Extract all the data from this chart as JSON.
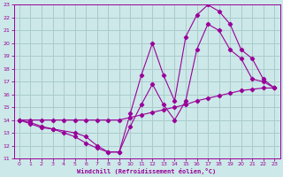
{
  "xlabel": "Windchill (Refroidissement éolien,°C)",
  "bg_color": "#cce8e8",
  "line_color": "#990099",
  "grid_color": "#aacccc",
  "xlim": [
    -0.5,
    23.5
  ],
  "ylim": [
    11,
    23
  ],
  "xticks": [
    0,
    1,
    2,
    3,
    4,
    5,
    6,
    7,
    8,
    9,
    10,
    11,
    12,
    13,
    14,
    15,
    16,
    17,
    18,
    19,
    20,
    21,
    22,
    23
  ],
  "yticks": [
    11,
    12,
    13,
    14,
    15,
    16,
    17,
    18,
    19,
    20,
    21,
    22,
    23
  ],
  "line1_x": [
    0,
    1,
    2,
    3,
    4,
    5,
    6,
    7,
    8,
    9,
    10,
    11,
    12,
    13,
    14,
    15,
    16,
    17,
    18,
    19,
    20,
    21,
    22,
    23
  ],
  "line1_y": [
    14,
    14,
    14,
    14,
    14,
    14,
    14,
    14,
    14,
    14,
    14.2,
    14.4,
    14.6,
    14.8,
    15.0,
    15.2,
    15.5,
    15.7,
    15.9,
    16.1,
    16.3,
    16.4,
    16.5,
    16.5
  ],
  "line2_x": [
    0,
    1,
    2,
    3,
    4,
    5,
    6,
    7,
    8,
    9,
    10,
    11,
    12,
    13,
    14,
    15,
    16,
    17,
    18,
    19,
    20,
    21,
    22,
    23
  ],
  "line2_y": [
    14,
    13.7,
    13.4,
    13.3,
    13.0,
    12.7,
    12.2,
    11.8,
    11.5,
    11.5,
    13.5,
    15.2,
    16.8,
    15.2,
    14.0,
    15.5,
    19.5,
    21.5,
    21.0,
    19.5,
    18.8,
    17.2,
    17.0,
    16.5
  ],
  "line3_x": [
    0,
    1,
    2,
    3,
    5,
    6,
    7,
    8,
    9,
    10,
    11,
    12,
    13,
    14,
    15,
    16,
    17,
    18,
    19,
    20,
    21,
    22,
    23
  ],
  "line3_y": [
    14,
    13.8,
    13.5,
    13.3,
    13.0,
    12.7,
    12.0,
    11.5,
    11.5,
    14.5,
    17.5,
    20.0,
    17.5,
    15.5,
    20.5,
    22.2,
    23.0,
    22.5,
    21.5,
    19.5,
    18.8,
    17.2,
    16.5
  ]
}
